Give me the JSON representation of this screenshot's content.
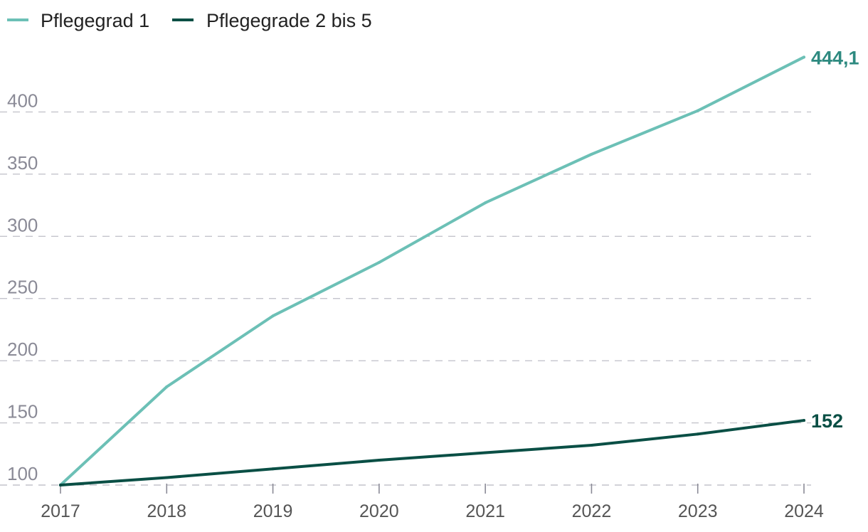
{
  "chart_data": {
    "type": "line",
    "title": "",
    "xlabel": "",
    "ylabel": "",
    "x": [
      "2017",
      "2018",
      "2019",
      "2020",
      "2021",
      "2022",
      "2023",
      "2024"
    ],
    "ylim": [
      100,
      450
    ],
    "yticks": [
      100,
      150,
      200,
      250,
      300,
      350,
      400
    ],
    "ytick_labels": [
      "100",
      "150",
      "200",
      "250",
      "300",
      "350",
      "400"
    ],
    "grid": true,
    "legend_position": "top-left",
    "series": [
      {
        "name": "Pflegegrad 1",
        "color": "#6cc0b6",
        "values": [
          100,
          179,
          236,
          279,
          327,
          366,
          401,
          444.1
        ],
        "end_label": "444,1",
        "end_label_color": "#2e8a80"
      },
      {
        "name": "Pflegegrade 2 bis 5",
        "color": "#0a4f45",
        "values": [
          100,
          106,
          113,
          120,
          126,
          132,
          141,
          152
        ],
        "end_label": "152",
        "end_label_color": "#0a4f45"
      }
    ]
  }
}
